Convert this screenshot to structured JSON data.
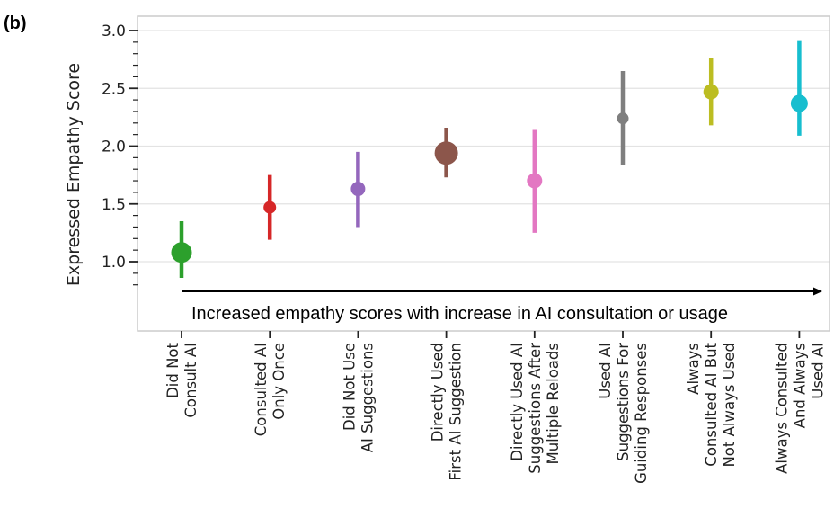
{
  "panel_label": "(b)",
  "chart_data": {
    "type": "scatter",
    "style": "point estimates with error bars",
    "ylabel": "Expressed Empathy Score",
    "xlabel": "",
    "ylim": [
      0.6,
      3.1
    ],
    "yticks": [
      1.0,
      1.5,
      2.0,
      2.5,
      3.0
    ],
    "ytick_labels": [
      "1.0",
      "1.5",
      "2.0",
      "2.5",
      "3.0"
    ],
    "grid": true,
    "categories": [
      "Did Not\nConsult AI",
      "Consulted AI\nOnly Once",
      "Did Not Use\nAI Suggestions",
      "Directly Used\nFirst AI Suggestion",
      "Directly Used AI\nSuggestions After\nMultiple Reloads",
      "Used AI\nSuggestions For\nGuiding Responses",
      "Always\nConsulted AI But\nNot Always Used",
      "Always Consulted\nAnd Always\nUsed AI"
    ],
    "values": [
      1.08,
      1.47,
      1.63,
      1.94,
      1.7,
      2.24,
      2.47,
      2.37
    ],
    "ci_low": [
      0.86,
      1.19,
      1.3,
      1.73,
      1.25,
      1.84,
      2.18,
      2.09
    ],
    "ci_high": [
      1.35,
      1.75,
      1.95,
      2.16,
      2.14,
      2.65,
      2.76,
      2.91
    ],
    "marker_sizes": [
      11.5,
      7.0,
      8.0,
      13.0,
      8.5,
      6.5,
      8.5,
      9.5
    ],
    "colors": [
      "#2ca02c",
      "#d62728",
      "#9467bd",
      "#8c564b",
      "#e377c2",
      "#7f7f7f",
      "#bcbd22",
      "#17becf"
    ],
    "annotation": "Increased empathy scores with increase in AI consultation or usage"
  }
}
